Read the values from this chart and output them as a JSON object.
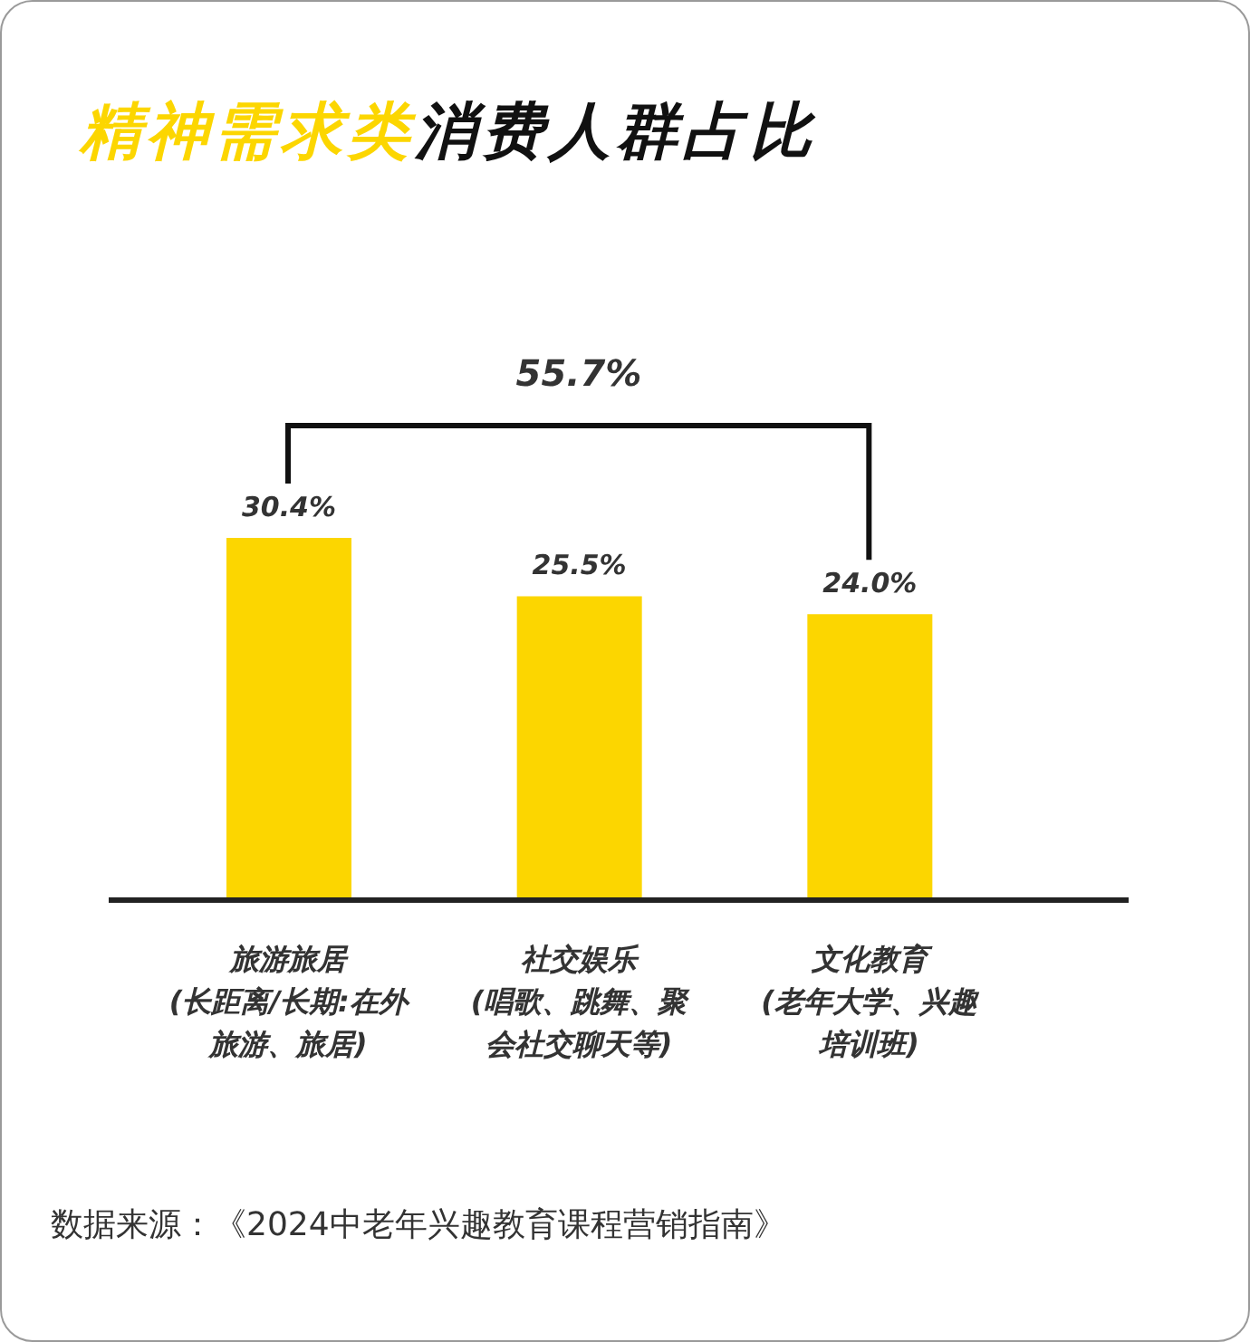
{
  "chart_data": {
    "type": "bar",
    "title": "精神需求类消费人群占比",
    "categories": [
      "旅游旅居(长距离/长期:在外旅游、旅居)",
      "社交娱乐(唱歌、跳舞、聚会社交聊天等)",
      "文化教育(老年大学、兴趣培训班)"
    ],
    "values": [
      30.4,
      25.5,
      24.0
    ],
    "color": "#fcd600",
    "value_labels": [
      "30.4%",
      "25.5%",
      "24.0%"
    ],
    "annotations": [
      "55.7%",
      "数据来源：《2024中老年兴趣教育课程营销指南》"
    ]
  }
}
